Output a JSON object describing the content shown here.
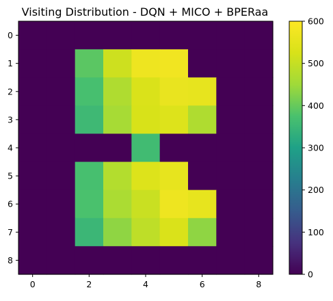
{
  "chart_data": {
    "type": "heatmap",
    "title": "Visiting Distribution - DQN + MICO + BPERaa",
    "xlabel": "",
    "ylabel": "",
    "x_ticks": [
      0,
      2,
      4,
      6,
      8
    ],
    "y_ticks": [
      0,
      1,
      2,
      3,
      4,
      5,
      6,
      7,
      8
    ],
    "colormap": "viridis",
    "colorbar": {
      "vmin": 0,
      "vmax": 600,
      "ticks": [
        0,
        100,
        200,
        300,
        400,
        500,
        600
      ]
    },
    "values": [
      [
        0,
        0,
        0,
        0,
        0,
        0,
        0,
        0,
        0
      ],
      [
        0,
        0,
        390,
        510,
        570,
        575,
        0,
        0,
        0
      ],
      [
        0,
        0,
        370,
        470,
        530,
        560,
        555,
        0,
        0
      ],
      [
        0,
        0,
        355,
        460,
        525,
        535,
        470,
        0,
        0
      ],
      [
        0,
        0,
        0,
        0,
        360,
        0,
        0,
        0,
        0
      ],
      [
        0,
        0,
        370,
        475,
        535,
        555,
        0,
        0,
        0
      ],
      [
        0,
        0,
        375,
        465,
        505,
        570,
        555,
        0,
        0
      ],
      [
        0,
        0,
        350,
        435,
        490,
        530,
        435,
        0,
        0
      ],
      [
        0,
        0,
        0,
        0,
        0,
        0,
        0,
        0,
        0
      ]
    ]
  }
}
